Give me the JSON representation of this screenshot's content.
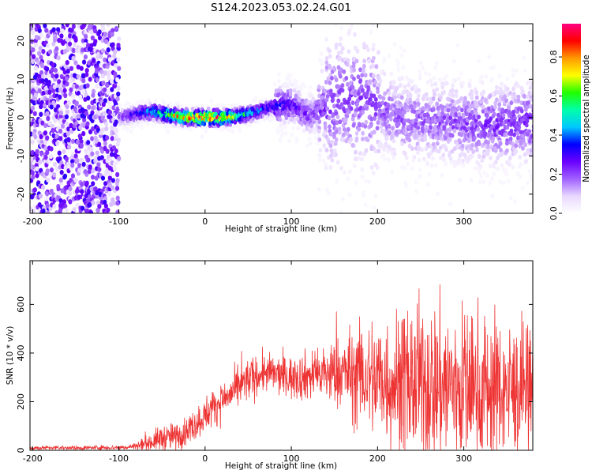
{
  "title": "S124.2023.053.02.24.G01",
  "chart_data": [
    {
      "type": "heatmap",
      "title": "S124.2023.053.02.24.G01",
      "xlabel": "Height of straight line (km)",
      "ylabel": "Frequency (Hz)",
      "xlim": [
        -203,
        380
      ],
      "ylim": [
        -25,
        24.5
      ],
      "xticks": [
        -200,
        -100,
        0,
        100,
        200,
        300
      ],
      "yticks": [
        -20,
        -10,
        0,
        10,
        20
      ],
      "colorbar": {
        "label": "Normalized spectral amplitude",
        "range": [
          0,
          0.97
        ],
        "ticks": [
          "0.0",
          "0.2",
          "0.4",
          "0.6",
          "0.8"
        ],
        "colormap": [
          "#ffffff",
          "#e8d8ff",
          "#a060ff",
          "#6a00ff",
          "#0000ff",
          "#00c8ff",
          "#00ffaa",
          "#20ff00",
          "#ffff00",
          "#ff9900",
          "#ff0000",
          "#ff0080"
        ]
      },
      "ridge": [
        {
          "x": -100,
          "f": 0.0,
          "amp": 0.22
        },
        {
          "x": -80,
          "f": 1.0,
          "amp": 0.38
        },
        {
          "x": -60,
          "f": 1.5,
          "amp": 0.5
        },
        {
          "x": -40,
          "f": 0.5,
          "amp": 0.72
        },
        {
          "x": -20,
          "f": 0.0,
          "amp": 0.9
        },
        {
          "x": 0,
          "f": 0.0,
          "amp": 0.95
        },
        {
          "x": 20,
          "f": 0.0,
          "amp": 0.85
        },
        {
          "x": 40,
          "f": 0.5,
          "amp": 0.6
        },
        {
          "x": 60,
          "f": 1.5,
          "amp": 0.45
        },
        {
          "x": 80,
          "f": 3.0,
          "amp": 0.35
        },
        {
          "x": 100,
          "f": 3.5,
          "amp": 0.3
        },
        {
          "x": 120,
          "f": 0.5,
          "amp": 0.25
        },
        {
          "x": 150,
          "f": 4.0,
          "amp": 0.22
        },
        {
          "x": 180,
          "f": 5.0,
          "amp": 0.22
        },
        {
          "x": 220,
          "f": 0.0,
          "amp": 0.2
        },
        {
          "x": 260,
          "f": -1.0,
          "amp": 0.2
        },
        {
          "x": 300,
          "f": -1.5,
          "amp": 0.22
        },
        {
          "x": 340,
          "f": -2.0,
          "amp": 0.24
        },
        {
          "x": 375,
          "f": -1.0,
          "amp": 0.25
        }
      ],
      "noise_floor_region": [
        -203,
        -100
      ]
    },
    {
      "type": "line",
      "xlabel": "Height of straight line (km)",
      "ylabel": "SNR (10 * v/v)",
      "xlim": [
        -203,
        380
      ],
      "ylim": [
        0,
        780
      ],
      "xticks": [
        -200,
        -100,
        0,
        100,
        200,
        300
      ],
      "yticks": [
        0,
        200,
        400,
        600
      ],
      "color": "#ee3333",
      "envelope": [
        {
          "x": -203,
          "mean": 10,
          "spread": 8
        },
        {
          "x": -150,
          "mean": 10,
          "spread": 8
        },
        {
          "x": -90,
          "mean": 12,
          "spread": 10
        },
        {
          "x": -70,
          "mean": 25,
          "spread": 25
        },
        {
          "x": -50,
          "mean": 50,
          "spread": 50
        },
        {
          "x": -30,
          "mean": 60,
          "spread": 50
        },
        {
          "x": -10,
          "mean": 110,
          "spread": 60
        },
        {
          "x": 10,
          "mean": 180,
          "spread": 70
        },
        {
          "x": 30,
          "mean": 230,
          "spread": 70
        },
        {
          "x": 50,
          "mean": 290,
          "spread": 80
        },
        {
          "x": 70,
          "mean": 320,
          "spread": 70
        },
        {
          "x": 100,
          "mean": 300,
          "spread": 80
        },
        {
          "x": 130,
          "mean": 310,
          "spread": 100
        },
        {
          "x": 160,
          "mean": 320,
          "spread": 140
        },
        {
          "x": 190,
          "mean": 300,
          "spread": 220
        },
        {
          "x": 230,
          "mean": 280,
          "spread": 280
        },
        {
          "x": 270,
          "mean": 270,
          "spread": 300
        },
        {
          "x": 310,
          "mean": 260,
          "spread": 290
        },
        {
          "x": 350,
          "mean": 250,
          "spread": 250
        },
        {
          "x": 380,
          "mean": 240,
          "spread": 230
        }
      ]
    }
  ]
}
